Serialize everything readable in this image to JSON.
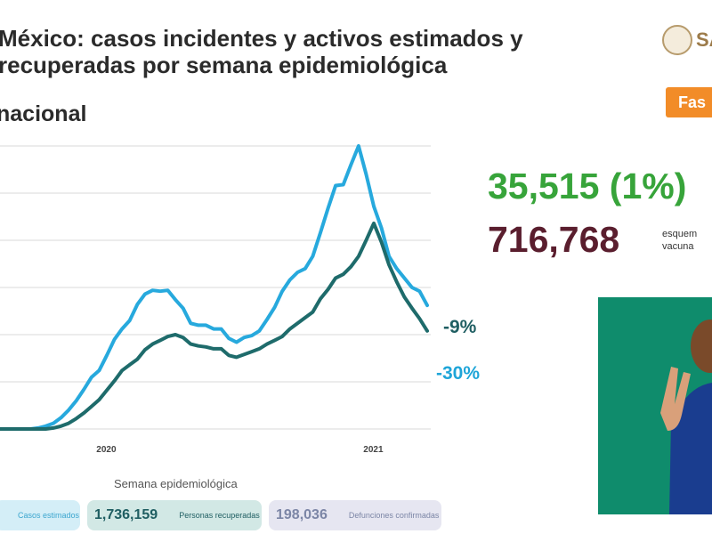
{
  "header": {
    "title": "México: casos incidentes y activos estimados y recuperadas por semana epidemiológica",
    "subtitle": "nacional",
    "logo_text": "SA",
    "phase_label": "Fas"
  },
  "stats": {
    "active": "35,515 (1%)",
    "vaccinated": "716,768",
    "vaccinated_note": "esquem vacuna"
  },
  "colors": {
    "incident": "#27a9dd",
    "active": "#1e6b6b",
    "stat_green": "#37a43a",
    "stat_maroon": "#5a1e2e"
  },
  "chart_data": {
    "type": "line",
    "xlabel": "Semana epidemiológica",
    "x_tick_labels": [
      "2020",
      "2021"
    ],
    "ylim": [
      0,
      300
    ],
    "grid": true,
    "series": [
      {
        "values": [
          0,
          0,
          0,
          0,
          0,
          1,
          3,
          6,
          12,
          20,
          30,
          42,
          55,
          62,
          78,
          95,
          106,
          115,
          132,
          143,
          147,
          146,
          147,
          137,
          128,
          112,
          110,
          110,
          106,
          106,
          96,
          92,
          97,
          99,
          104,
          116,
          129,
          146,
          158,
          166,
          170,
          183,
          208,
          234,
          258,
          259,
          280,
          300,
          270,
          236,
          213,
          183,
          170,
          160,
          150,
          146,
          131
        ]
      },
      {
        "values": [
          0,
          0,
          0,
          0,
          0,
          0,
          0,
          1,
          3,
          6,
          11,
          17,
          24,
          31,
          41,
          51,
          62,
          68,
          74,
          84,
          90,
          94,
          98,
          100,
          97,
          90,
          88,
          87,
          85,
          85,
          78,
          76,
          79,
          82,
          85,
          90,
          94,
          98,
          106,
          112,
          118,
          124,
          138,
          148,
          160,
          164,
          172,
          183,
          200,
          218,
          198,
          174,
          156,
          140,
          128,
          117,
          104
        ]
      }
    ],
    "annotations": [
      "-9%",
      "-30%"
    ]
  },
  "footer": {
    "cards": [
      {
        "number": "",
        "label": "Casos estimados"
      },
      {
        "number": "1,736,159",
        "label": "Personas recuperadas"
      },
      {
        "number": "198,036",
        "label": "Defunciones confirmadas"
      }
    ]
  }
}
